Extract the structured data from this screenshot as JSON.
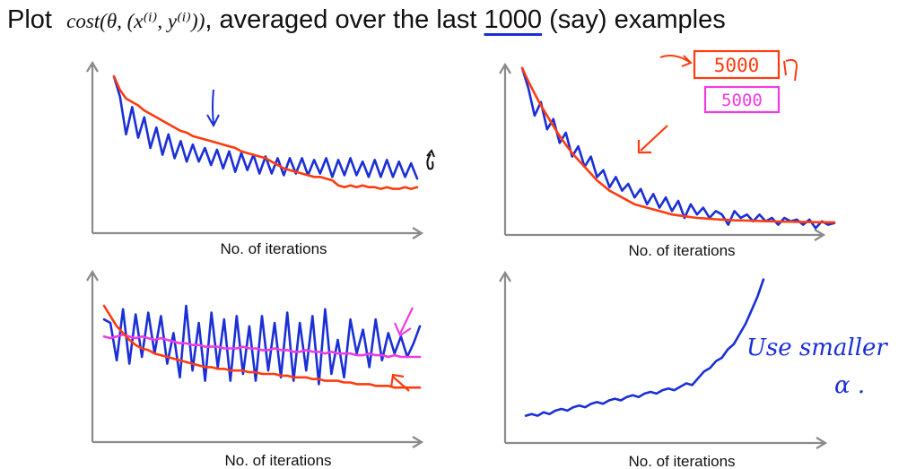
{
  "title": {
    "prefix": "Plot",
    "formula": "cost(θ, (x⁽ⁱ⁾, y⁽ⁱ⁾))",
    "middle": ", averaged over the last",
    "number": "1000",
    "suffix": " (say) examples"
  },
  "annotations": {
    "box_red": "5000",
    "box_magenta": "5000",
    "use_smaller": "Use smaller",
    "alpha": "α ."
  },
  "colors": {
    "blue": "#1a2fd6",
    "red": "#ff3b10",
    "magenta": "#ee3be6",
    "axis": "#8a8a8a"
  },
  "chart_data": [
    {
      "type": "line",
      "panel": "top-left",
      "xlabel": "No. of iterations",
      "ylabel": "",
      "x": [
        0,
        1,
        2,
        3,
        4,
        5,
        6,
        7,
        8,
        9,
        10,
        11,
        12,
        13,
        14,
        15,
        16,
        17,
        18,
        19,
        20,
        21,
        22,
        23,
        24,
        25,
        26,
        27,
        28,
        29,
        30,
        31,
        32,
        33,
        34,
        35,
        36,
        37,
        38,
        39,
        40,
        41,
        42,
        43,
        44,
        45,
        46,
        47,
        48,
        49,
        50
      ],
      "series": [
        {
          "color": "blue",
          "values": [
            0.92,
            0.8,
            0.58,
            0.74,
            0.56,
            0.68,
            0.5,
            0.62,
            0.46,
            0.58,
            0.44,
            0.54,
            0.42,
            0.52,
            0.42,
            0.5,
            0.4,
            0.49,
            0.38,
            0.48,
            0.36,
            0.47,
            0.37,
            0.46,
            0.35,
            0.45,
            0.35,
            0.44,
            0.34,
            0.44,
            0.35,
            0.44,
            0.34,
            0.43,
            0.35,
            0.44,
            0.33,
            0.43,
            0.34,
            0.44,
            0.34,
            0.42,
            0.33,
            0.43,
            0.33,
            0.43,
            0.33,
            0.42,
            0.33,
            0.41,
            0.32
          ]
        },
        {
          "color": "red",
          "values": [
            0.92,
            0.84,
            0.79,
            0.77,
            0.75,
            0.72,
            0.7,
            0.68,
            0.66,
            0.64,
            0.62,
            0.6,
            0.59,
            0.57,
            0.56,
            0.55,
            0.54,
            0.53,
            0.52,
            0.51,
            0.5,
            0.48,
            0.47,
            0.46,
            0.45,
            0.44,
            0.42,
            0.4,
            0.38,
            0.37,
            0.36,
            0.35,
            0.34,
            0.33,
            0.33,
            0.32,
            0.31,
            0.28,
            0.27,
            0.28,
            0.27,
            0.28,
            0.27,
            0.27,
            0.26,
            0.27,
            0.26,
            0.26,
            0.27,
            0.26,
            0.27
          ]
        }
      ]
    },
    {
      "type": "line",
      "panel": "top-right",
      "xlabel": "No. of iterations",
      "ylabel": "",
      "x": [
        0,
        1,
        2,
        3,
        4,
        5,
        6,
        7,
        8,
        9,
        10,
        11,
        12,
        13,
        14,
        15,
        16,
        17,
        18,
        19,
        20,
        21,
        22,
        23,
        24,
        25,
        26,
        27,
        28,
        29,
        30,
        31,
        32,
        33,
        34,
        35,
        36,
        37,
        38,
        39,
        40,
        41,
        42,
        43,
        44,
        45,
        46,
        47,
        48,
        49,
        50
      ],
      "series": [
        {
          "color": "blue",
          "values": [
            0.98,
            0.86,
            0.7,
            0.78,
            0.62,
            0.68,
            0.54,
            0.6,
            0.46,
            0.52,
            0.4,
            0.46,
            0.34,
            0.38,
            0.28,
            0.34,
            0.26,
            0.3,
            0.22,
            0.27,
            0.18,
            0.24,
            0.16,
            0.22,
            0.14,
            0.2,
            0.1,
            0.18,
            0.12,
            0.16,
            0.1,
            0.14,
            0.12,
            0.06,
            0.14,
            0.1,
            0.12,
            0.08,
            0.12,
            0.08,
            0.1,
            0.06,
            0.1,
            0.08,
            0.09,
            0.06,
            0.09,
            0.04,
            0.08,
            0.06,
            0.07
          ]
        },
        {
          "color": "red",
          "values": [
            0.98,
            0.9,
            0.83,
            0.76,
            0.7,
            0.64,
            0.58,
            0.53,
            0.48,
            0.44,
            0.4,
            0.36,
            0.32,
            0.29,
            0.26,
            0.24,
            0.22,
            0.2,
            0.18,
            0.17,
            0.16,
            0.15,
            0.14,
            0.13,
            0.12,
            0.115,
            0.11,
            0.105,
            0.1,
            0.098,
            0.095,
            0.092,
            0.09,
            0.088,
            0.086,
            0.085,
            0.084,
            0.083,
            0.082,
            0.081,
            0.08,
            0.079,
            0.078,
            0.078,
            0.077,
            0.076,
            0.076,
            0.075,
            0.075,
            0.074,
            0.074
          ]
        }
      ]
    },
    {
      "type": "line",
      "panel": "bottom-left",
      "xlabel": "No. of iterations",
      "ylabel": "",
      "x": [
        0,
        1,
        2,
        3,
        4,
        5,
        6,
        7,
        8,
        9,
        10,
        11,
        12,
        13,
        14,
        15,
        16,
        17,
        18,
        19,
        20,
        21,
        22,
        23,
        24,
        25,
        26,
        27,
        28,
        29,
        30,
        31,
        32,
        33,
        34,
        35,
        36,
        37,
        38,
        39,
        40,
        41,
        42,
        43,
        44,
        45,
        46,
        47,
        48,
        49,
        50
      ],
      "series": [
        {
          "color": "blue",
          "values": [
            0.72,
            0.7,
            0.48,
            0.78,
            0.46,
            0.75,
            0.5,
            0.76,
            0.52,
            0.74,
            0.46,
            0.64,
            0.38,
            0.8,
            0.42,
            0.7,
            0.36,
            0.76,
            0.44,
            0.72,
            0.36,
            0.74,
            0.4,
            0.68,
            0.36,
            0.74,
            0.42,
            0.7,
            0.38,
            0.76,
            0.36,
            0.7,
            0.42,
            0.74,
            0.34,
            0.78,
            0.4,
            0.6,
            0.38,
            0.72,
            0.52,
            0.66,
            0.44,
            0.72,
            0.48,
            0.64,
            0.52,
            0.62,
            0.5,
            0.58,
            0.68
          ]
        },
        {
          "color": "magenta",
          "values": [
            0.62,
            0.61,
            0.62,
            0.63,
            0.62,
            0.61,
            0.62,
            0.61,
            0.6,
            0.61,
            0.6,
            0.59,
            0.58,
            0.58,
            0.57,
            0.57,
            0.56,
            0.56,
            0.56,
            0.55,
            0.55,
            0.55,
            0.56,
            0.55,
            0.55,
            0.54,
            0.54,
            0.55,
            0.54,
            0.54,
            0.53,
            0.53,
            0.54,
            0.53,
            0.53,
            0.52,
            0.53,
            0.52,
            0.52,
            0.52,
            0.51,
            0.51,
            0.52,
            0.51,
            0.51,
            0.5,
            0.51,
            0.5,
            0.5,
            0.5,
            0.5
          ]
        },
        {
          "color": "red",
          "values": [
            0.8,
            0.74,
            0.68,
            0.64,
            0.6,
            0.57,
            0.55,
            0.54,
            0.52,
            0.51,
            0.5,
            0.49,
            0.48,
            0.47,
            0.46,
            0.45,
            0.44,
            0.44,
            0.43,
            0.43,
            0.42,
            0.42,
            0.42,
            0.41,
            0.41,
            0.4,
            0.4,
            0.4,
            0.39,
            0.39,
            0.38,
            0.38,
            0.38,
            0.37,
            0.37,
            0.36,
            0.36,
            0.36,
            0.35,
            0.35,
            0.34,
            0.34,
            0.34,
            0.33,
            0.33,
            0.33,
            0.32,
            0.32,
            0.32,
            0.32,
            0.32
          ]
        }
      ]
    },
    {
      "type": "line",
      "panel": "bottom-right",
      "xlabel": "No. of iterations",
      "ylabel": "",
      "x": [
        0,
        1,
        2,
        3,
        4,
        5,
        6,
        7,
        8,
        9,
        10,
        11,
        12,
        13,
        14,
        15,
        16,
        17,
        18,
        19,
        20,
        21,
        22,
        23,
        24,
        25,
        26,
        27,
        28,
        29,
        30,
        31,
        32,
        33,
        34,
        35,
        36,
        37,
        38,
        39,
        40
      ],
      "series": [
        {
          "color": "blue",
          "values": [
            0.16,
            0.17,
            0.16,
            0.18,
            0.17,
            0.19,
            0.2,
            0.19,
            0.21,
            0.22,
            0.21,
            0.23,
            0.24,
            0.23,
            0.25,
            0.26,
            0.25,
            0.27,
            0.28,
            0.27,
            0.29,
            0.3,
            0.29,
            0.31,
            0.32,
            0.31,
            0.33,
            0.35,
            0.34,
            0.38,
            0.42,
            0.44,
            0.48,
            0.5,
            0.55,
            0.58,
            0.64,
            0.7,
            0.78,
            0.86,
            0.96
          ]
        }
      ]
    }
  ]
}
